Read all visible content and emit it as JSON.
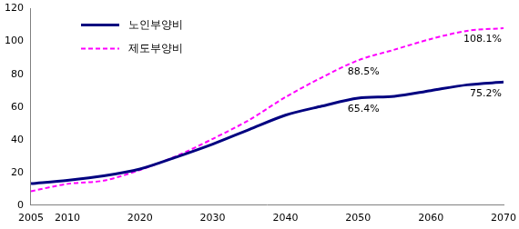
{
  "chart_data": {
    "type": "line",
    "x": [
      2005,
      2010,
      2015,
      2020,
      2025,
      2030,
      2035,
      2040,
      2045,
      2050,
      2055,
      2060,
      2065,
      2070
    ],
    "series": [
      {
        "name": "노인부양비",
        "color": "#000080",
        "line_style": "solid",
        "marker": "none",
        "values": [
          13.2,
          15.2,
          17.9,
          22.1,
          29.4,
          37.3,
          46.2,
          55.0,
          60.5,
          65.4,
          66.5,
          70.0,
          73.5,
          75.2
        ],
        "value_labels": [
          null,
          null,
          null,
          null,
          null,
          null,
          null,
          null,
          null,
          "65.4%",
          null,
          null,
          null,
          "75.2%"
        ]
      },
      {
        "name": "제도부양비",
        "color": "#ff00ff",
        "line_style": "dashed",
        "marker": "none",
        "values": [
          8.5,
          13.0,
          15.0,
          21.5,
          30.0,
          40.5,
          52.0,
          66.0,
          78.0,
          88.5,
          95.0,
          101.5,
          106.5,
          108.1
        ],
        "value_labels": [
          null,
          null,
          null,
          null,
          null,
          null,
          null,
          null,
          null,
          "88.5%",
          null,
          null,
          null,
          "108.1%"
        ]
      }
    ],
    "xlim": [
      2005,
      2070
    ],
    "xticks": [
      2005,
      2010,
      2020,
      2030,
      2040,
      2050,
      2060,
      2070
    ],
    "ylim": [
      0,
      120
    ],
    "yticks": [
      0,
      20,
      40,
      60,
      80,
      100,
      120
    ],
    "grid": false,
    "legend": "upper left"
  }
}
